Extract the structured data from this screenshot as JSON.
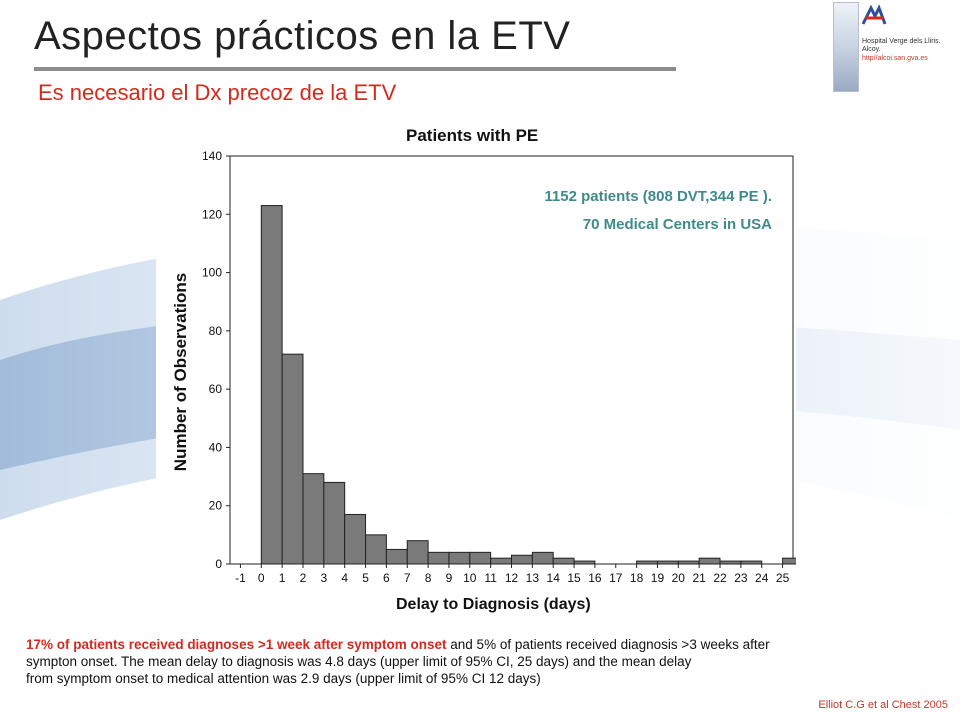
{
  "slide": {
    "title": "Aspectos prácticos en la ETV",
    "subtitle": "Es necesario el Dx precoz de la ETV"
  },
  "logo": {
    "name_line": "Hospital Verge dels Lliris. Alcoy.",
    "url": "http//alcoi.san.gva.es",
    "mark_icon": "hospital-logo-icon"
  },
  "annotation": {
    "line1": "1152 patients (808 DVT,344 PE ).",
    "line2": "70 Medical Centers in USA"
  },
  "footer": {
    "highlight": "17% of patients received diagnoses >1 week after symptom onset",
    "rest_line1": " and 5% of patients received diagnosis >3 weeks after",
    "line2": "sympton onset. The mean delay to diagnosis  was 4.8 days  (upper limit of  95% CI, 25 days) and the  mean  delay",
    "line3": "from symptom  onset  to   medical attention  was 2.9 days  (upper limit of 95% CI 12  days)"
  },
  "citation": "Elliot C.G et al Chest 2005",
  "colors": {
    "bar_fill": "#7a7a7a",
    "annotation": "#3f8b8a",
    "accent_red": "#d42a1e"
  },
  "chart_data": {
    "type": "bar",
    "title": "Patients with PE",
    "xlabel": "Delay to Diagnosis (days)",
    "ylabel": "Number of Observations",
    "xlim": [
      -1.5,
      25.5
    ],
    "ylim": [
      0,
      140
    ],
    "x_ticks": [
      -1,
      0,
      1,
      2,
      3,
      4,
      5,
      6,
      7,
      8,
      9,
      10,
      11,
      12,
      13,
      14,
      15,
      16,
      17,
      18,
      19,
      20,
      21,
      22,
      23,
      24,
      25
    ],
    "y_ticks": [
      0,
      20,
      40,
      60,
      80,
      100,
      120,
      140
    ],
    "grid": false,
    "series": [
      {
        "bins_start": [
          0,
          1,
          2,
          3,
          4,
          5,
          6,
          7,
          8,
          9,
          10,
          11,
          12,
          13,
          14,
          15,
          16,
          17,
          18,
          19,
          20,
          21,
          22,
          23,
          24,
          25
        ],
        "values": [
          123,
          72,
          31,
          28,
          17,
          10,
          5,
          8,
          4,
          4,
          4,
          2,
          3,
          4,
          2,
          1,
          0,
          0,
          1,
          1,
          1,
          2,
          1,
          1,
          0,
          2
        ]
      }
    ]
  }
}
